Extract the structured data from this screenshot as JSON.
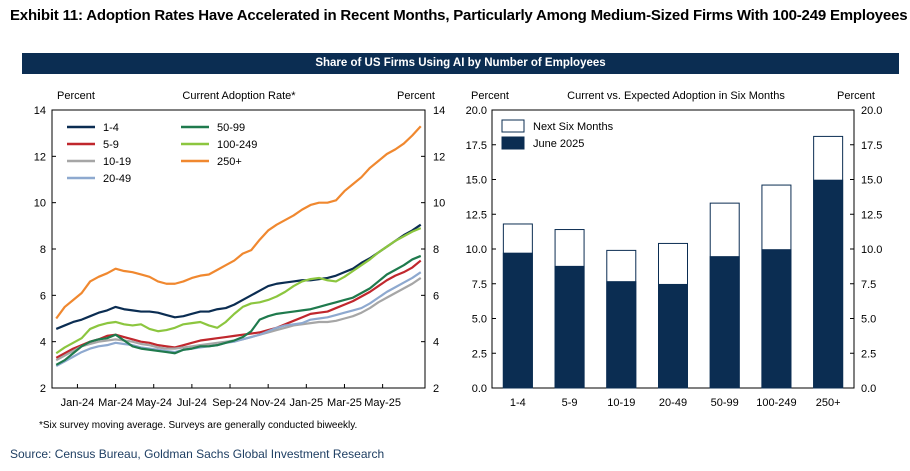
{
  "exhibit_title": "Exhibit 11: Adoption Rates Have Accelerated in Recent Months, Particularly Among Medium-Sized Firms With 100-249 Employees",
  "banner": "Share of US Firms Using AI by Number of Employees",
  "footnote": "*Six survey moving average. Surveys are generally conducted biweekly.",
  "source": "Source: Census Bureau, Goldman Sachs Global Investment Research",
  "chart_data": [
    {
      "type": "line",
      "title": "Current Adoption Rate*",
      "ylabel_left": "Percent",
      "ylabel_right": "Percent",
      "ylim": [
        2,
        14
      ],
      "yticks": [
        2,
        4,
        6,
        8,
        10,
        12,
        14
      ],
      "xlim": [
        0,
        44
      ],
      "x_ticks": [
        {
          "x": 3,
          "label": "Jan-24"
        },
        {
          "x": 7.5,
          "label": "Mar-24"
        },
        {
          "x": 12,
          "label": "May-24"
        },
        {
          "x": 16.5,
          "label": "Jul-24"
        },
        {
          "x": 21,
          "label": "Sep-24"
        },
        {
          "x": 25.5,
          "label": "Nov-24"
        },
        {
          "x": 30,
          "label": "Jan-25"
        },
        {
          "x": 34.5,
          "label": "Mar-25"
        },
        {
          "x": 39,
          "label": "May-25"
        }
      ],
      "legend_position": "top-left",
      "series": [
        {
          "name": "1-4",
          "color": "#0b2d52",
          "values": [
            4.55,
            4.7,
            4.85,
            4.95,
            5.1,
            5.25,
            5.35,
            5.5,
            5.4,
            5.35,
            5.3,
            5.3,
            5.25,
            5.15,
            5.05,
            5.1,
            5.2,
            5.3,
            5.3,
            5.4,
            5.45,
            5.6,
            5.8,
            6.0,
            6.2,
            6.4,
            6.5,
            6.55,
            6.6,
            6.65,
            6.65,
            6.7,
            6.75,
            6.85,
            7.0,
            7.15,
            7.4,
            7.6,
            7.85,
            8.1,
            8.35,
            8.6,
            8.8,
            9.05
          ]
        },
        {
          "name": "5-9",
          "color": "#c0272d",
          "values": [
            3.3,
            3.5,
            3.7,
            3.85,
            4.0,
            4.1,
            4.25,
            4.3,
            4.2,
            4.1,
            4.0,
            3.95,
            3.85,
            3.8,
            3.75,
            3.85,
            3.95,
            4.05,
            4.1,
            4.15,
            4.2,
            4.25,
            4.3,
            4.35,
            4.4,
            4.5,
            4.6,
            4.75,
            4.9,
            5.05,
            5.2,
            5.25,
            5.3,
            5.45,
            5.6,
            5.75,
            5.95,
            6.15,
            6.4,
            6.65,
            6.85,
            7.0,
            7.2,
            7.5
          ]
        },
        {
          "name": "10-19",
          "color": "#a6a6a6",
          "values": [
            3.2,
            3.4,
            3.6,
            3.8,
            3.9,
            4.0,
            4.05,
            4.1,
            4.05,
            4.0,
            3.9,
            3.85,
            3.75,
            3.7,
            3.7,
            3.75,
            3.8,
            3.85,
            3.9,
            3.95,
            4.0,
            4.05,
            4.1,
            4.2,
            4.3,
            4.4,
            4.5,
            4.6,
            4.7,
            4.75,
            4.8,
            4.85,
            4.85,
            4.9,
            5.0,
            5.1,
            5.25,
            5.45,
            5.7,
            5.9,
            6.1,
            6.3,
            6.5,
            6.75
          ]
        },
        {
          "name": "20-49",
          "color": "#8ea9cf",
          "values": [
            2.95,
            3.15,
            3.35,
            3.55,
            3.7,
            3.8,
            3.85,
            3.95,
            3.9,
            3.85,
            3.75,
            3.7,
            3.65,
            3.6,
            3.55,
            3.65,
            3.7,
            3.75,
            3.8,
            3.85,
            3.95,
            4.0,
            4.1,
            4.2,
            4.3,
            4.45,
            4.6,
            4.7,
            4.75,
            4.8,
            4.95,
            5.0,
            5.05,
            5.15,
            5.25,
            5.35,
            5.45,
            5.65,
            5.9,
            6.15,
            6.35,
            6.55,
            6.75,
            7.0
          ]
        },
        {
          "name": "50-99",
          "color": "#1f7a4d",
          "values": [
            3.0,
            3.2,
            3.5,
            3.8,
            4.0,
            4.1,
            4.15,
            4.3,
            4.05,
            3.8,
            3.7,
            3.65,
            3.6,
            3.55,
            3.5,
            3.65,
            3.7,
            3.8,
            3.8,
            3.85,
            3.95,
            4.05,
            4.2,
            4.45,
            4.95,
            5.1,
            5.2,
            5.25,
            5.3,
            5.35,
            5.4,
            5.5,
            5.6,
            5.7,
            5.8,
            5.9,
            6.1,
            6.3,
            6.6,
            6.9,
            7.1,
            7.3,
            7.55,
            7.7
          ]
        },
        {
          "name": "100-249",
          "color": "#8cc63f",
          "values": [
            3.5,
            3.75,
            3.95,
            4.15,
            4.55,
            4.7,
            4.8,
            4.85,
            4.75,
            4.7,
            4.75,
            4.55,
            4.45,
            4.5,
            4.6,
            4.75,
            4.8,
            4.85,
            4.7,
            4.6,
            4.85,
            5.2,
            5.5,
            5.65,
            5.7,
            5.8,
            5.95,
            6.15,
            6.4,
            6.6,
            6.7,
            6.75,
            6.65,
            6.6,
            6.8,
            7.05,
            7.3,
            7.55,
            7.85,
            8.1,
            8.35,
            8.55,
            8.75,
            8.9
          ]
        },
        {
          "name": "250+",
          "color": "#f0882f",
          "values": [
            5.0,
            5.5,
            5.8,
            6.1,
            6.6,
            6.8,
            6.95,
            7.15,
            7.05,
            7.0,
            6.9,
            6.8,
            6.6,
            6.5,
            6.5,
            6.6,
            6.75,
            6.85,
            6.9,
            7.1,
            7.3,
            7.5,
            7.8,
            7.95,
            8.4,
            8.8,
            9.05,
            9.25,
            9.45,
            9.7,
            9.9,
            10.0,
            10.0,
            10.1,
            10.5,
            10.8,
            11.1,
            11.5,
            11.8,
            12.1,
            12.3,
            12.55,
            12.9,
            13.3
          ]
        }
      ]
    },
    {
      "type": "bar",
      "title": "Current vs. Expected Adoption in Six Months",
      "ylabel_left": "Percent",
      "ylabel_right": "Percent",
      "ylim": [
        0,
        20
      ],
      "yticks": [
        "0.0",
        "2.5",
        "5.0",
        "7.5",
        "10.0",
        "12.5",
        "15.0",
        "17.5",
        "20.0"
      ],
      "categories": [
        "1-4",
        "5-9",
        "10-19",
        "20-49",
        "50-99",
        "100-249",
        "250+"
      ],
      "legend_position": "top-left",
      "series": [
        {
          "name": "Next Six Months",
          "color": "#ffffff",
          "values": [
            11.8,
            11.4,
            9.9,
            10.4,
            13.3,
            14.6,
            18.1
          ]
        },
        {
          "name": "June 2025",
          "color": "#0b2d52",
          "values": [
            9.7,
            8.75,
            7.65,
            7.45,
            9.45,
            9.95,
            14.95
          ]
        }
      ]
    }
  ]
}
